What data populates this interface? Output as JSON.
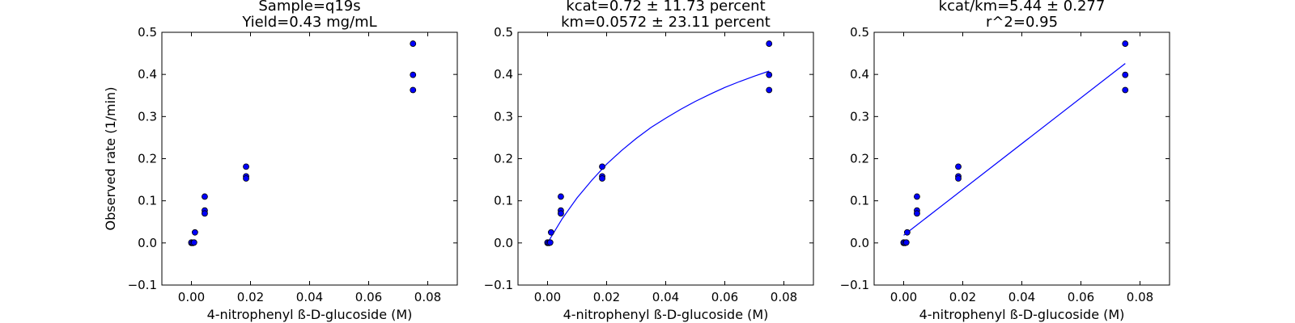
{
  "chart_data": [
    {
      "type": "scatter",
      "title": [
        "Sample=q19s",
        "Yield=0.43 mg/mL"
      ],
      "xlabel": "4-nitrophenyl ß-D-glucoside (M)",
      "ylabel": "Observed rate (1/min)",
      "xlim": [
        -0.01,
        0.09
      ],
      "ylim": [
        -0.1,
        0.5
      ],
      "xticks": [
        "0.00",
        "0.02",
        "0.04",
        "0.06",
        "0.08"
      ],
      "yticks": [
        "−0.1",
        "0.0",
        "0.1",
        "0.2",
        "0.3",
        "0.4",
        "0.5"
      ],
      "grid": false,
      "marker_color": "#0000ff",
      "points": [
        {
          "x": 0.0,
          "y": 0.0
        },
        {
          "x": 0.0,
          "y": 0.001
        },
        {
          "x": 0.0005,
          "y": 0.0
        },
        {
          "x": 0.0009,
          "y": 0.001
        },
        {
          "x": 0.0012,
          "y": 0.025
        },
        {
          "x": 0.0045,
          "y": 0.11
        },
        {
          "x": 0.0045,
          "y": 0.077
        },
        {
          "x": 0.0045,
          "y": 0.07
        },
        {
          "x": 0.0185,
          "y": 0.181
        },
        {
          "x": 0.0185,
          "y": 0.158
        },
        {
          "x": 0.0185,
          "y": 0.153
        },
        {
          "x": 0.075,
          "y": 0.473
        },
        {
          "x": 0.075,
          "y": 0.399
        },
        {
          "x": 0.075,
          "y": 0.363
        }
      ]
    },
    {
      "type": "scatter",
      "title": [
        "kcat=0.72 ± 11.73 percent",
        "km=0.0572 ± 23.11 percent"
      ],
      "xlabel": "4-nitrophenyl ß-D-glucoside (M)",
      "ylabel": "",
      "xlim": [
        -0.01,
        0.09
      ],
      "ylim": [
        -0.1,
        0.5
      ],
      "xticks": [
        "0.00",
        "0.02",
        "0.04",
        "0.06",
        "0.08"
      ],
      "yticks": [
        "−0.1",
        "0.0",
        "0.1",
        "0.2",
        "0.3",
        "0.4",
        "0.5"
      ],
      "grid": false,
      "marker_color": "#0000ff",
      "points": [
        {
          "x": 0.0,
          "y": 0.0
        },
        {
          "x": 0.0,
          "y": 0.001
        },
        {
          "x": 0.0005,
          "y": 0.0
        },
        {
          "x": 0.0009,
          "y": 0.001
        },
        {
          "x": 0.0012,
          "y": 0.025
        },
        {
          "x": 0.0045,
          "y": 0.11
        },
        {
          "x": 0.0045,
          "y": 0.077
        },
        {
          "x": 0.0045,
          "y": 0.07
        },
        {
          "x": 0.0185,
          "y": 0.181
        },
        {
          "x": 0.0185,
          "y": 0.158
        },
        {
          "x": 0.0185,
          "y": 0.153
        },
        {
          "x": 0.075,
          "y": 0.473
        },
        {
          "x": 0.075,
          "y": 0.399
        },
        {
          "x": 0.075,
          "y": 0.363
        }
      ],
      "fit_line": {
        "kind": "michaelis-menten",
        "color": "#0000ff",
        "x": [
          0.0,
          0.005,
          0.01,
          0.015,
          0.02,
          0.025,
          0.03,
          0.035,
          0.04,
          0.045,
          0.05,
          0.055,
          0.06,
          0.065,
          0.07,
          0.075
        ],
        "y": [
          0.0,
          0.058,
          0.107,
          0.149,
          0.187,
          0.219,
          0.248,
          0.274,
          0.296,
          0.317,
          0.336,
          0.353,
          0.369,
          0.383,
          0.396,
          0.408
        ]
      }
    },
    {
      "type": "scatter",
      "title": [
        "kcat/km=5.44 ± 0.277",
        "r^2=0.95"
      ],
      "xlabel": "4-nitrophenyl ß-D-glucoside (M)",
      "ylabel": "",
      "xlim": [
        -0.01,
        0.09
      ],
      "ylim": [
        -0.1,
        0.5
      ],
      "xticks": [
        "0.00",
        "0.02",
        "0.04",
        "0.06",
        "0.08"
      ],
      "yticks": [
        "−0.1",
        "0.0",
        "0.1",
        "0.2",
        "0.3",
        "0.4",
        "0.5"
      ],
      "grid": false,
      "marker_color": "#0000ff",
      "points": [
        {
          "x": 0.0,
          "y": 0.0
        },
        {
          "x": 0.0,
          "y": 0.001
        },
        {
          "x": 0.0005,
          "y": 0.0
        },
        {
          "x": 0.0009,
          "y": 0.001
        },
        {
          "x": 0.0012,
          "y": 0.025
        },
        {
          "x": 0.0045,
          "y": 0.11
        },
        {
          "x": 0.0045,
          "y": 0.077
        },
        {
          "x": 0.0045,
          "y": 0.07
        },
        {
          "x": 0.0185,
          "y": 0.181
        },
        {
          "x": 0.0185,
          "y": 0.158
        },
        {
          "x": 0.0185,
          "y": 0.153
        },
        {
          "x": 0.075,
          "y": 0.473
        },
        {
          "x": 0.075,
          "y": 0.399
        },
        {
          "x": 0.075,
          "y": 0.363
        }
      ],
      "fit_line": {
        "kind": "linear",
        "color": "#0000ff",
        "x": [
          0.0,
          0.075
        ],
        "y": [
          0.018,
          0.426
        ]
      }
    }
  ]
}
